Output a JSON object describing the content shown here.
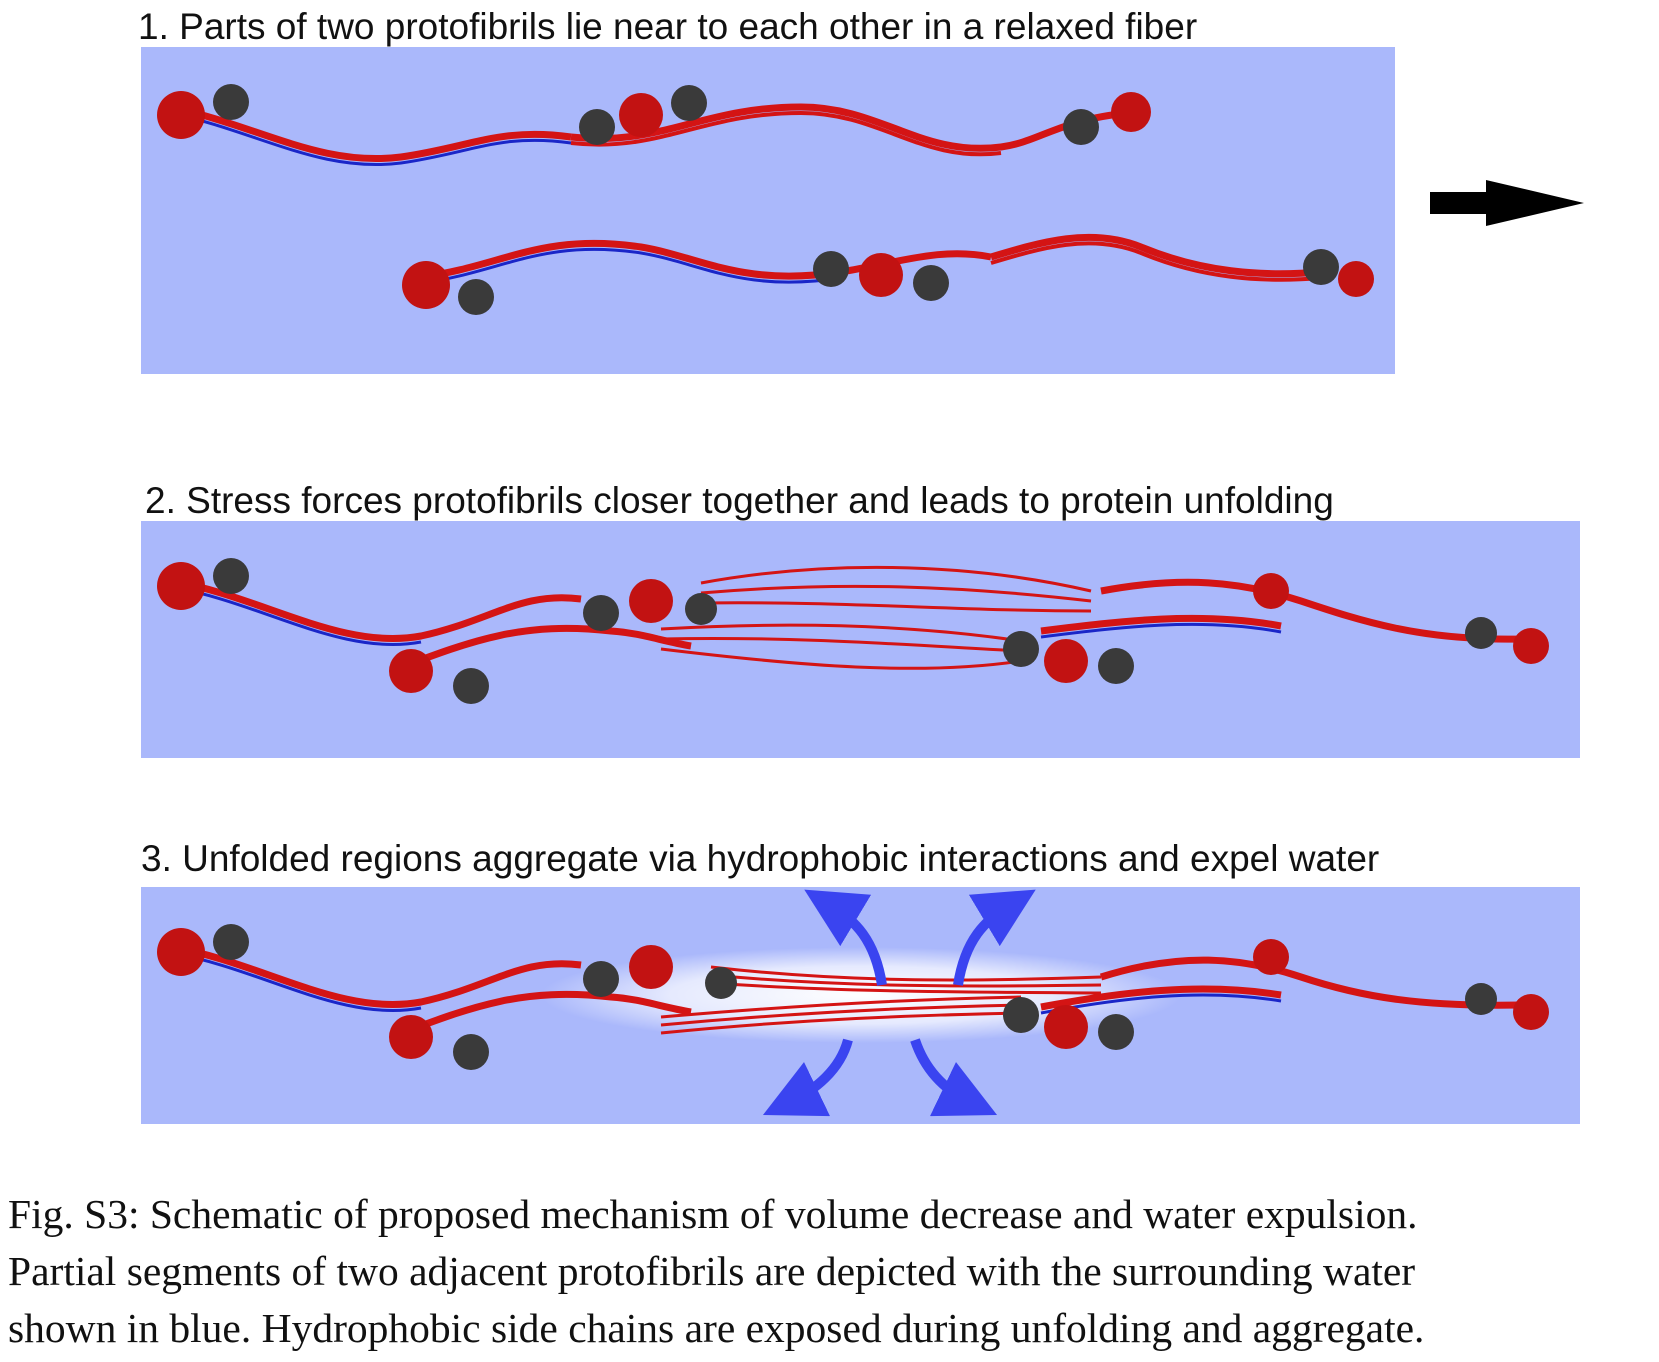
{
  "panels": [
    {
      "title": "1. Parts of two protofibrils lie near to each other in a relaxed fiber"
    },
    {
      "title": "2. Stress forces protofibrils closer together and leads to protein unfolding"
    },
    {
      "title": "3. Unfolded regions aggregate via hydrophobic interactions and expel water"
    }
  ],
  "caption": {
    "line1": "Fig. S3:  Schematic of proposed mechanism of volume decrease and water expulsion.",
    "line2": "Partial segments of two adjacent protofibrils are depicted with the surrounding water",
    "line3": "shown in blue.  Hydrophobic side chains are exposed during unfolding and aggregate."
  },
  "colors": {
    "water": "#aab8fb",
    "coiled_coil": "#d41414",
    "hydrophobic_chain": "#1a26c8",
    "globular_domain": "#3a3a3a",
    "expulsion_arrows": "#3a44f0",
    "direction_arrow": "#000000"
  },
  "icons": {
    "direction": "right-arrow-icon",
    "expulsion": "curved-arrow-icon"
  }
}
